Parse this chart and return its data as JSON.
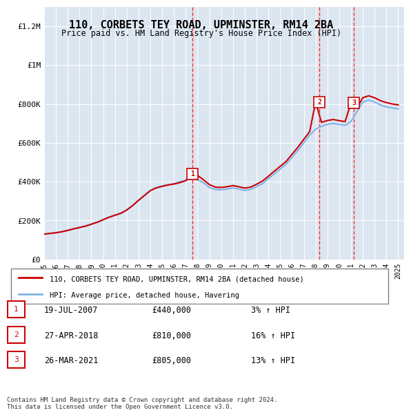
{
  "title": "110, CORBETS TEY ROAD, UPMINSTER, RM14 2BA",
  "subtitle": "Price paid vs. HM Land Registry's House Price Index (HPI)",
  "ylabel": "",
  "xlabel": "",
  "background_color": "#dce6f1",
  "plot_bg_color": "#dce6f1",
  "ylim": [
    0,
    1300000
  ],
  "yticks": [
    0,
    200000,
    400000,
    600000,
    800000,
    1000000,
    1200000
  ],
  "ytick_labels": [
    "£0",
    "£200K",
    "£400K",
    "£600K",
    "£800K",
    "£1M",
    "£1.2M"
  ],
  "hpi_color": "#7fb3e8",
  "price_color": "#cc0000",
  "transaction_color": "#cc0000",
  "transactions": [
    {
      "date": 2007.54,
      "price": 440000,
      "label": "1"
    },
    {
      "date": 2018.32,
      "price": 810000,
      "label": "2"
    },
    {
      "date": 2021.23,
      "price": 805000,
      "label": "3"
    }
  ],
  "vline_dates": [
    2007.54,
    2018.32,
    2021.23
  ],
  "legend_line_label": "110, CORBETS TEY ROAD, UPMINSTER, RM14 2BA (detached house)",
  "legend_hpi_label": "HPI: Average price, detached house, Havering",
  "table_data": [
    [
      "1",
      "19-JUL-2007",
      "£440,000",
      "3% ↑ HPI"
    ],
    [
      "2",
      "27-APR-2018",
      "£810,000",
      "16% ↑ HPI"
    ],
    [
      "3",
      "26-MAR-2021",
      "£805,000",
      "13% ↑ HPI"
    ]
  ],
  "footer": "Contains HM Land Registry data © Crown copyright and database right 2024.\nThis data is licensed under the Open Government Licence v3.0.",
  "hpi_x": [
    1995,
    1995.5,
    1996,
    1996.5,
    1997,
    1997.5,
    1998,
    1998.5,
    1999,
    1999.5,
    2000,
    2000.5,
    2001,
    2001.5,
    2002,
    2002.5,
    2003,
    2003.5,
    2004,
    2004.5,
    2005,
    2005.5,
    2006,
    2006.5,
    2007,
    2007.5,
    2008,
    2008.5,
    2009,
    2009.5,
    2010,
    2010.5,
    2011,
    2011.5,
    2012,
    2012.5,
    2013,
    2013.5,
    2014,
    2014.5,
    2015,
    2015.5,
    2016,
    2016.5,
    2017,
    2017.5,
    2018,
    2018.5,
    2019,
    2019.5,
    2020,
    2020.5,
    2021,
    2021.5,
    2022,
    2022.5,
    2023,
    2023.5,
    2024,
    2024.5,
    2025
  ],
  "hpi_y": [
    130000,
    133000,
    138000,
    143000,
    150000,
    158000,
    165000,
    172000,
    182000,
    192000,
    205000,
    218000,
    228000,
    238000,
    255000,
    278000,
    305000,
    330000,
    355000,
    370000,
    378000,
    385000,
    390000,
    400000,
    408000,
    415000,
    410000,
    395000,
    370000,
    360000,
    358000,
    362000,
    368000,
    362000,
    355000,
    360000,
    375000,
    390000,
    415000,
    440000,
    465000,
    490000,
    525000,
    560000,
    600000,
    640000,
    670000,
    685000,
    695000,
    700000,
    695000,
    690000,
    710000,
    760000,
    810000,
    820000,
    810000,
    795000,
    785000,
    780000,
    775000
  ],
  "price_x": [
    1995,
    1995.25,
    1996,
    1996.5,
    1997,
    1997.5,
    1998,
    1998.5,
    1999,
    1999.5,
    2000,
    2000.5,
    2001,
    2001.5,
    2002,
    2002.5,
    2003,
    2003.5,
    2004,
    2004.5,
    2005,
    2005.5,
    2006,
    2006.5,
    2007,
    2007.5,
    2008,
    2008.5,
    2009,
    2009.5,
    2010,
    2010.5,
    2011,
    2011.5,
    2012,
    2012.5,
    2013,
    2013.5,
    2014,
    2014.5,
    2015,
    2015.5,
    2016,
    2016.5,
    2017,
    2017.5,
    2018,
    2018.5,
    2019,
    2019.5,
    2020,
    2020.5,
    2021,
    2021.5,
    2022,
    2022.5,
    2023,
    2023.5,
    2024,
    2024.5,
    2025
  ],
  "price_y": [
    130000,
    132000,
    137000,
    142000,
    149000,
    157000,
    164000,
    171000,
    181000,
    191000,
    204000,
    217000,
    227000,
    237000,
    254000,
    277000,
    304000,
    329000,
    354000,
    368000,
    376000,
    383000,
    388000,
    395000,
    405000,
    440000,
    432000,
    410000,
    385000,
    372000,
    370000,
    374000,
    380000,
    374000,
    367000,
    372000,
    387000,
    403000,
    428000,
    454000,
    479000,
    504000,
    541000,
    577000,
    618000,
    658000,
    810000,
    705000,
    715000,
    720000,
    714000,
    709000,
    805000,
    780000,
    832000,
    842000,
    832000,
    817000,
    807000,
    800000,
    795000
  ],
  "xtick_years": [
    1995,
    1996,
    1997,
    1998,
    1999,
    2000,
    2001,
    2002,
    2003,
    2004,
    2005,
    2006,
    2007,
    2008,
    2009,
    2010,
    2011,
    2012,
    2013,
    2014,
    2015,
    2016,
    2017,
    2018,
    2019,
    2020,
    2021,
    2022,
    2023,
    2024,
    2025
  ],
  "xmin": 1995,
  "xmax": 2025.5
}
